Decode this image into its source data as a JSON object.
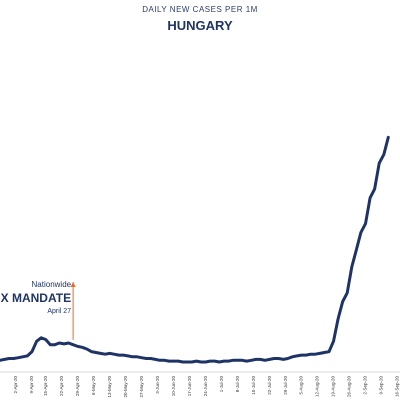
{
  "chart_data": {
    "type": "line",
    "subtitle": "DAILY NEW CASES PER 1M",
    "title": "HUNGARY",
    "ylim": [
      0,
      14
    ],
    "x": [
      "26-Mar-20",
      "28-Mar-20",
      "30-Mar-20",
      "1-Apr-20",
      "3-Apr-20",
      "5-Apr-20",
      "7-Apr-20",
      "9-Apr-20",
      "11-Apr-20",
      "13-Apr-20",
      "15-Apr-20",
      "17-Apr-20",
      "19-Apr-20",
      "21-Apr-20",
      "23-Apr-20",
      "25-Apr-20",
      "27-Apr-20",
      "29-Apr-20",
      "1-May-20",
      "3-May-20",
      "5-May-20",
      "7-May-20",
      "9-May-20",
      "11-May-20",
      "13-May-20",
      "15-May-20",
      "17-May-20",
      "19-May-20",
      "21-May-20",
      "23-May-20",
      "25-May-20",
      "27-May-20",
      "29-May-20",
      "31-May-20",
      "2-Jun-20",
      "4-Jun-20",
      "6-Jun-20",
      "8-Jun-20",
      "10-Jun-20",
      "12-Jun-20",
      "14-Jun-20",
      "16-Jun-20",
      "18-Jun-20",
      "20-Jun-20",
      "22-Jun-20",
      "24-Jun-20",
      "26-Jun-20",
      "28-Jun-20",
      "30-Jun-20",
      "2-Jul-20",
      "4-Jul-20",
      "6-Jul-20",
      "8-Jul-20",
      "10-Jul-20",
      "12-Jul-20",
      "14-Jul-20",
      "16-Jul-20",
      "18-Jul-20",
      "20-Jul-20",
      "22-Jul-20",
      "24-Jul-20",
      "26-Jul-20",
      "28-Jul-20",
      "30-Jul-20",
      "1-Aug-20",
      "3-Aug-20",
      "5-Aug-20",
      "7-Aug-20",
      "9-Aug-20",
      "11-Aug-20",
      "13-Aug-20",
      "15-Aug-20",
      "17-Aug-20",
      "19-Aug-20",
      "21-Aug-20",
      "23-Aug-20",
      "25-Aug-20",
      "27-Aug-20",
      "29-Aug-20",
      "31-Aug-20",
      "2-Sep-20",
      "4-Sep-20",
      "6-Sep-20",
      "8-Sep-20",
      "10-Sep-20",
      "12-Sep-20"
    ],
    "series": [
      {
        "values": [
          0.1,
          0.15,
          0.2,
          0.2,
          0.25,
          0.3,
          0.35,
          0.6,
          1.2,
          1.4,
          1.3,
          1.0,
          1.0,
          1.1,
          1.05,
          1.1,
          1.0,
          0.9,
          0.85,
          0.75,
          0.6,
          0.55,
          0.5,
          0.45,
          0.5,
          0.45,
          0.4,
          0.4,
          0.35,
          0.3,
          0.3,
          0.25,
          0.2,
          0.2,
          0.15,
          0.1,
          0.1,
          0.05,
          0.05,
          0.05,
          0.0,
          0.0,
          0.0,
          0.05,
          0.0,
          0.0,
          0.05,
          0.05,
          0.0,
          0.05,
          0.05,
          0.1,
          0.1,
          0.1,
          0.05,
          0.1,
          0.15,
          0.15,
          0.1,
          0.15,
          0.2,
          0.2,
          0.15,
          0.2,
          0.3,
          0.35,
          0.4,
          0.4,
          0.45,
          0.45,
          0.5,
          0.55,
          0.6,
          1.2,
          2.5,
          3.5,
          4.0,
          5.5,
          6.5,
          7.5,
          8.0,
          9.5,
          10.0,
          11.5,
          12.0,
          13.0
        ]
      }
    ],
    "xticks": [
      "26-Mar-20",
      "2-Apr-20",
      "9-Apr-20",
      "15-Apr-20",
      "22-Apr-20",
      "29-Apr-20",
      "6-May-20",
      "13-May-20",
      "20-May-20",
      "27-May-20",
      "3-Jun-20",
      "10-Jun-20",
      "17-Jun-20",
      "24-Jun-20",
      "1-Jul-20",
      "8-Jul-20",
      "15-Jul-20",
      "22-Jul-20",
      "29-Jul-20",
      "5-Aug-20",
      "12-Aug-20",
      "19-Aug-20",
      "26-Aug-20",
      "2-Sep-20",
      "9-Sep-20",
      "16-Sep-20"
    ],
    "annotation": {
      "at": "27-Apr-20",
      "line1": "Nationwide",
      "line2": "X MANDATE",
      "line3": "April 27",
      "arrow_color": "#f26522"
    },
    "line_color": "#1f3466",
    "grid": false
  }
}
